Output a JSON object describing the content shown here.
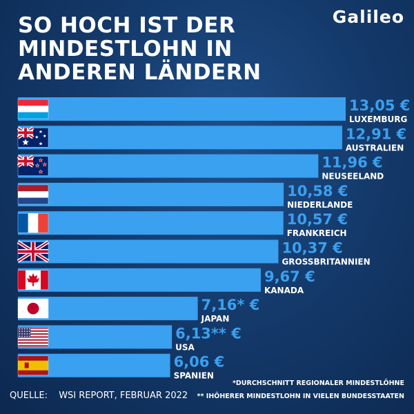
{
  "brand": "Galileo",
  "title": "SO HOCH IST DER MINDESTLOHN IN ANDEREN LÄNDERN",
  "footnotes": [
    "*DURCHSCHNITT REGIONALER MINDESTLÖHNE",
    "** IHÖHERER MINDESTLOHN IN VIELEN BUNDESSTAATEN"
  ],
  "source_label": "QUELLE:",
  "source_text": "WSI REPORT, FEBRUAR 2022",
  "colors": {
    "bar": "#3aa0f0",
    "background": "#143a6b"
  },
  "chart_data": {
    "type": "bar",
    "orientation": "horizontal",
    "unit": "€",
    "categories": [
      "LUXEMBURG",
      "AUSTRALIEN",
      "NEUSEELAND",
      "NIEDERLANDE",
      "FRANKREICH",
      "GROSSBRITANNIEN",
      "KANADA",
      "JAPAN",
      "USA",
      "SPANIEN"
    ],
    "values": [
      13.05,
      12.91,
      11.96,
      10.58,
      10.57,
      10.37,
      9.67,
      7.16,
      6.13,
      6.06
    ],
    "value_labels": [
      "13,05 €",
      "12,91 €",
      "11,96 €",
      "10,58 €",
      "10,57 €",
      "10,37 €",
      "9,67 €",
      "7,16* €",
      "6,13** €",
      "6,06 €"
    ],
    "flags": [
      "luxembourg-flag",
      "australia-flag",
      "new-zealand-flag",
      "netherlands-flag",
      "france-flag",
      "uk-flag",
      "canada-flag",
      "japan-flag",
      "usa-flag",
      "spain-flag"
    ]
  }
}
